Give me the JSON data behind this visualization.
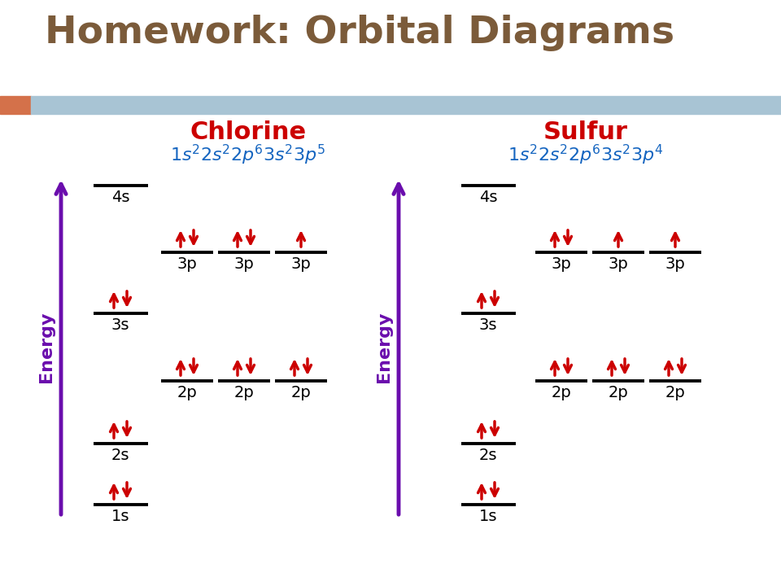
{
  "title": "Homework: Orbital Diagrams",
  "title_color": "#7B5B3A",
  "title_fontsize": 34,
  "bg_color": "#ffffff",
  "header_bar_color": "#A8C4D4",
  "header_bar_orange": "#D4714A",
  "element1_name": "Chlorine",
  "element2_name": "Sulfur",
  "element_name_color": "#CC0000",
  "config_color": "#1565C0",
  "arrow_color": "#CC0000",
  "energy_label_color": "#6A0DAD",
  "line_color": "#000000",
  "label_color": "#000000",
  "label_fontsize": 14
}
